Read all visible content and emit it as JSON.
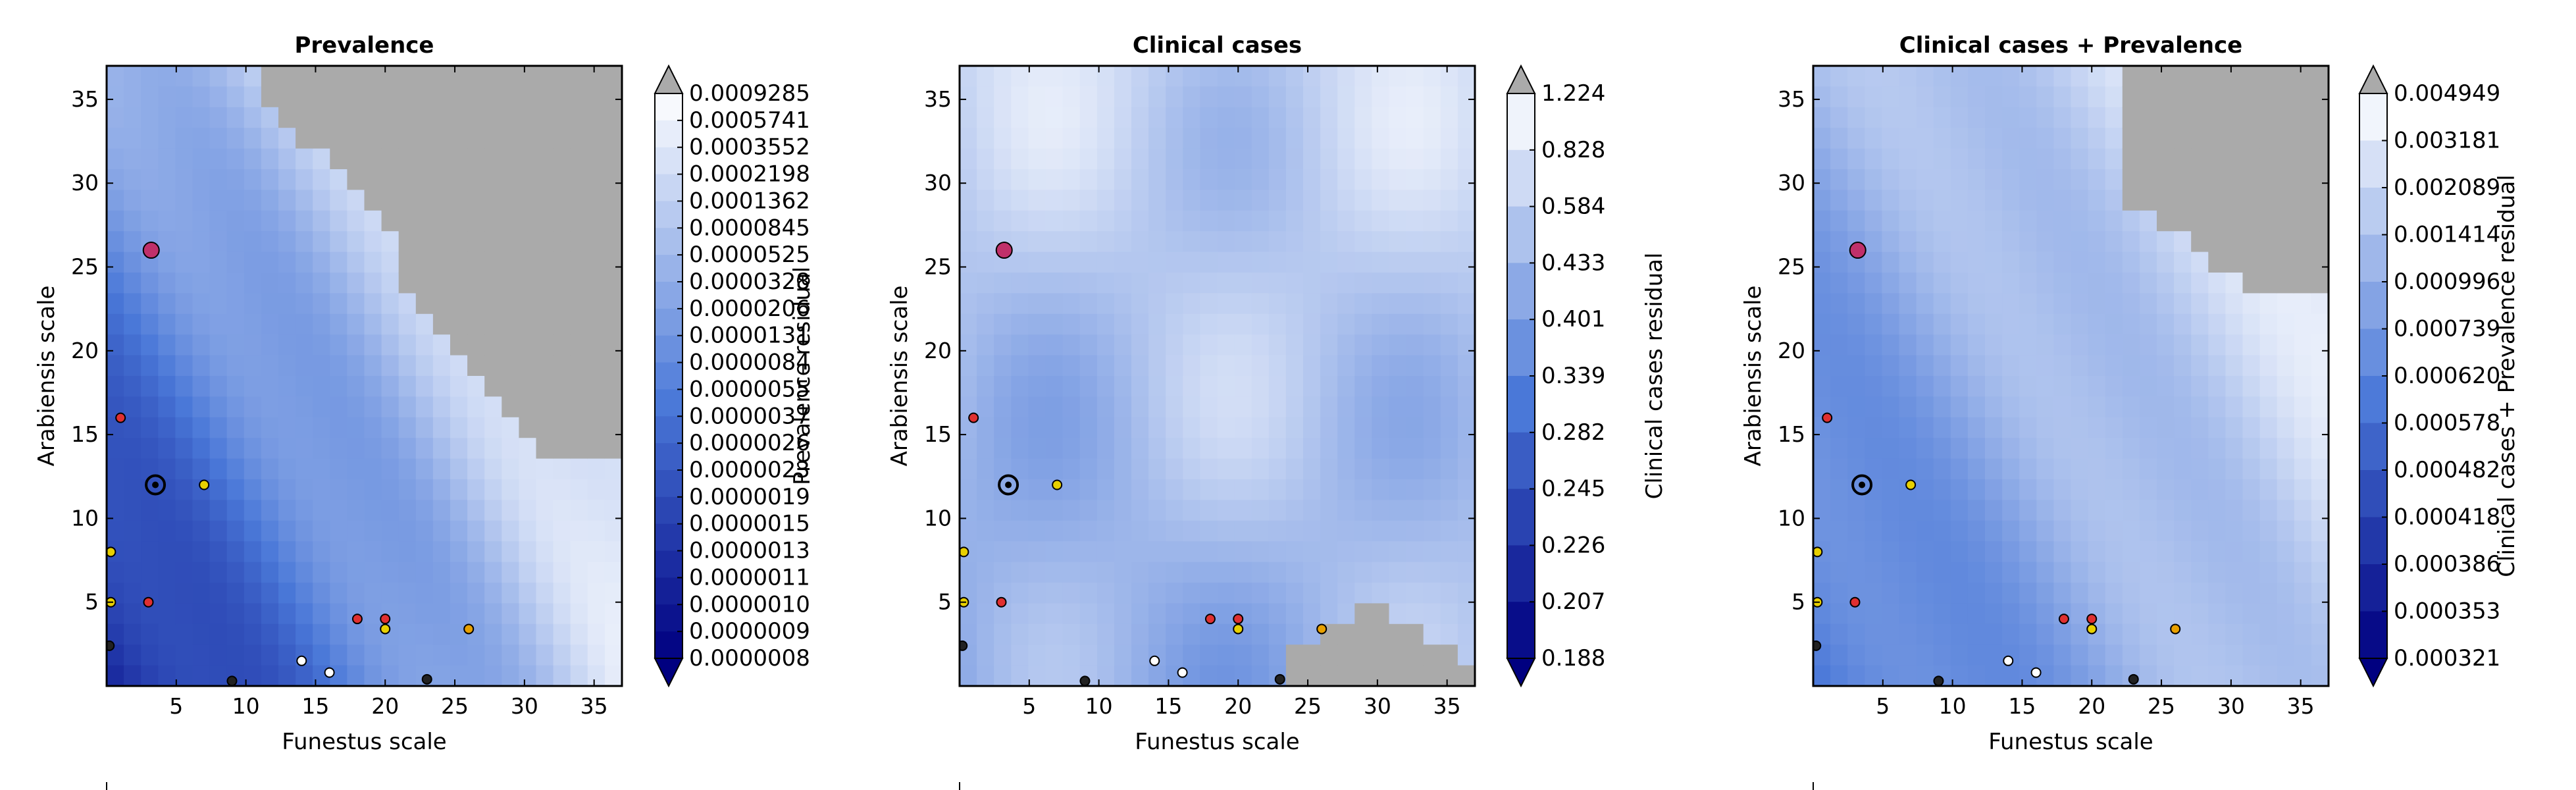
{
  "chart_data": [
    {
      "type": "contour",
      "title": "Prevalence",
      "xlabel": "Funestus scale",
      "ylabel": "Arabiensis scale",
      "xlim": [
        0,
        37
      ],
      "ylim": [
        0,
        37
      ],
      "xticks": [
        "5",
        "10",
        "15",
        "20",
        "25",
        "30",
        "35"
      ],
      "yticks": [
        "5",
        "10",
        "15",
        "20",
        "25",
        "30",
        "35"
      ],
      "colorbar_label": "Prevalence residual",
      "colorbar_ticks": [
        "0.0009285",
        "0.0005741",
        "0.0003552",
        "0.0002198",
        "0.0001362",
        "0.0000845",
        "0.0000525",
        "0.0000328",
        "0.0000206",
        "0.0000131",
        "0.0000084",
        "0.0000055",
        "0.0000037",
        "0.0000026",
        "0.0000023",
        "0.0000019",
        "0.0000015",
        "0.0000013",
        "0.0000011",
        "0.0000010",
        "0.0000009",
        "0.0000008"
      ],
      "grey_region": "upper-right",
      "best_fit_marker": {
        "x": 3.5,
        "y": 12
      }
    },
    {
      "type": "contour",
      "title": "Clinical cases",
      "xlabel": "Funestus scale",
      "ylabel": "Arabiensis scale",
      "xlim": [
        0,
        37
      ],
      "ylim": [
        0,
        37
      ],
      "xticks": [
        "5",
        "10",
        "15",
        "20",
        "25",
        "30",
        "35"
      ],
      "yticks": [
        "5",
        "10",
        "15",
        "20",
        "25",
        "30",
        "35"
      ],
      "colorbar_label": "Clinical cases residual",
      "colorbar_ticks": [
        "1.224",
        "0.828",
        "0.584",
        "0.433",
        "0.401",
        "0.339",
        "0.282",
        "0.245",
        "0.226",
        "0.207",
        "0.188"
      ],
      "grey_region": "bottom-right",
      "best_fit_marker": {
        "x": 3.5,
        "y": 12
      }
    },
    {
      "type": "contour",
      "title": "Clinical cases + Prevalence",
      "xlabel": "Funestus scale",
      "ylabel": "Arabiensis scale",
      "xlim": [
        0,
        37
      ],
      "ylim": [
        0,
        37
      ],
      "xticks": [
        "5",
        "10",
        "15",
        "20",
        "25",
        "30",
        "35"
      ],
      "yticks": [
        "5",
        "10",
        "15",
        "20",
        "25",
        "30",
        "35"
      ],
      "colorbar_label": "Clinical cases + Prevalence residual",
      "colorbar_ticks": [
        "0.004949",
        "0.003181",
        "0.002089",
        "0.001414",
        "0.000996",
        "0.000739",
        "0.000620",
        "0.000578",
        "0.000482",
        "0.000418",
        "0.000386",
        "0.000353",
        "0.000321"
      ],
      "grey_region": "upper-right",
      "best_fit_marker": {
        "x": 3.5,
        "y": 12
      }
    }
  ],
  "colors": {
    "low": "#000080",
    "mid": "#4a78d8",
    "high": "#ffffff",
    "over": "#aaaaaa"
  }
}
